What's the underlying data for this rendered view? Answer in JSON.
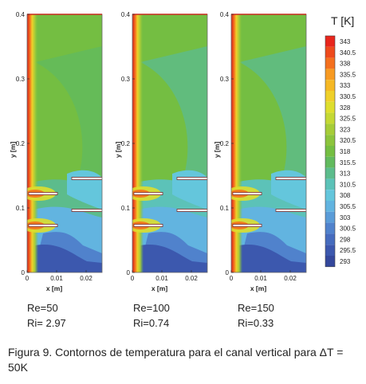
{
  "panels": [
    {
      "re": "Re=50",
      "ri": "Ri= 2.97"
    },
    {
      "re": "Re=100",
      "ri": "Ri=0.74"
    },
    {
      "re": "Re=150",
      "ri": "Ri=0.33"
    }
  ],
  "axes": {
    "y_label": "y [m]",
    "x_label": "x [m]",
    "y_ticks": [
      "0",
      "0.1",
      "0.2",
      "0.3",
      "0.4"
    ],
    "x_ticks": [
      "0",
      "0.01",
      "0.02"
    ]
  },
  "colorbar": {
    "title": "T [K]",
    "levels": [
      "343",
      "340.5",
      "338",
      "335.5",
      "333",
      "330.5",
      "328",
      "325.5",
      "323",
      "320.5",
      "318",
      "315.5",
      "313",
      "310.5",
      "308",
      "305.5",
      "303",
      "300.5",
      "298",
      "295.5",
      "293"
    ],
    "colors": [
      "#e8261c",
      "#ee4a1c",
      "#f4701e",
      "#f79a22",
      "#f5b824",
      "#efd02a",
      "#dede2e",
      "#c4d834",
      "#a6cc38",
      "#8cc43c",
      "#74be42",
      "#62ba5e",
      "#5cbc8c",
      "#5cc2b8",
      "#64c6dc",
      "#62b4e0",
      "#5a9cd8",
      "#5082cc",
      "#466cbe",
      "#3c58ae",
      "#34489c"
    ]
  },
  "caption": {
    "label": "Figura 9.",
    "text": "Contornos de temperatura para el canal vertical para ΔT = 50K"
  }
}
